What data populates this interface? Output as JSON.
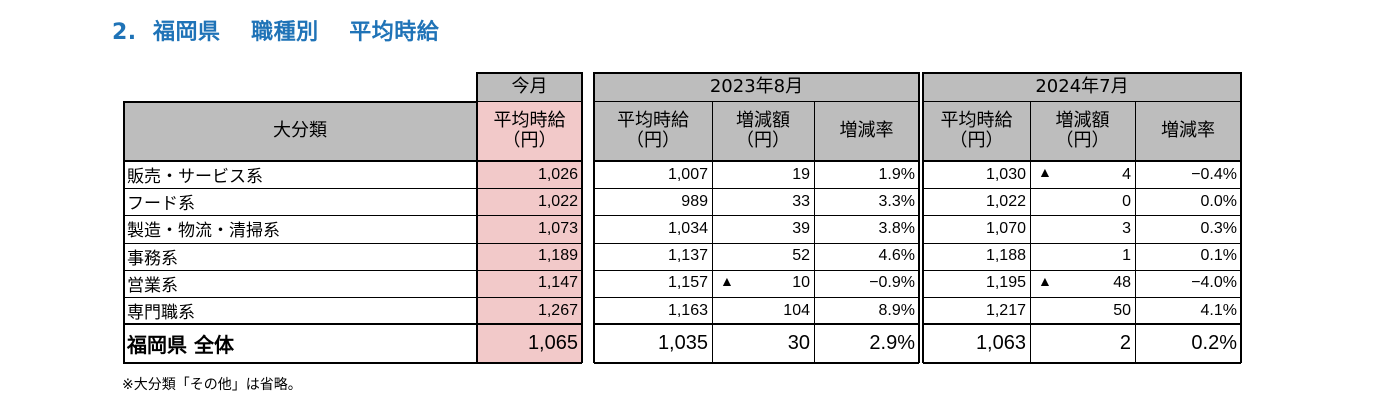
{
  "title": "2.  福岡県　 職種別　 平均時給",
  "header": {
    "category": "大分類",
    "current_group": "今月",
    "current_avg": [
      "平均時給",
      "（円）"
    ],
    "group1": "2023年8月",
    "group2": "2024年7月",
    "avg": [
      "平均時給",
      "（円）"
    ],
    "diff": [
      "増減額",
      "（円）"
    ],
    "rate": "増減率"
  },
  "rows": [
    {
      "label": "販売・サービス系",
      "cur": "1,026",
      "a_avg": "1,007",
      "a_neg": false,
      "a_diff": "19",
      "a_rate": "1.9%",
      "b_avg": "1,030",
      "b_neg": true,
      "b_diff": "4",
      "b_rate": "−0.4%"
    },
    {
      "label": "フード系",
      "cur": "1,022",
      "a_avg": "989",
      "a_neg": false,
      "a_diff": "33",
      "a_rate": "3.3%",
      "b_avg": "1,022",
      "b_neg": false,
      "b_diff": "0",
      "b_rate": "0.0%"
    },
    {
      "label": "製造・物流・清掃系",
      "cur": "1,073",
      "a_avg": "1,034",
      "a_neg": false,
      "a_diff": "39",
      "a_rate": "3.8%",
      "b_avg": "1,070",
      "b_neg": false,
      "b_diff": "3",
      "b_rate": "0.3%"
    },
    {
      "label": "事務系",
      "cur": "1,189",
      "a_avg": "1,137",
      "a_neg": false,
      "a_diff": "52",
      "a_rate": "4.6%",
      "b_avg": "1,188",
      "b_neg": false,
      "b_diff": "1",
      "b_rate": "0.1%"
    },
    {
      "label": "営業系",
      "cur": "1,147",
      "a_avg": "1,157",
      "a_neg": true,
      "a_diff": "10",
      "a_rate": "−0.9%",
      "b_avg": "1,195",
      "b_neg": true,
      "b_diff": "48",
      "b_rate": "−4.0%"
    },
    {
      "label": "専門職系",
      "cur": "1,267",
      "a_avg": "1,163",
      "a_neg": false,
      "a_diff": "104",
      "a_rate": "8.9%",
      "b_avg": "1,217",
      "b_neg": false,
      "b_diff": "50",
      "b_rate": "4.1%"
    }
  ],
  "total": {
    "label": "福岡県 全体",
    "cur": "1,065",
    "a_avg": "1,035",
    "a_diff": "30",
    "a_rate": "2.9%",
    "b_avg": "1,063",
    "b_diff": "2",
    "b_rate": "0.2%"
  },
  "neg_marker": "▲",
  "note": "※大分類「その他」は省略。",
  "colors": {
    "title": "#1f73b7",
    "header_bg": "#bdbdbd",
    "current_bg": "#f2c9c9"
  }
}
